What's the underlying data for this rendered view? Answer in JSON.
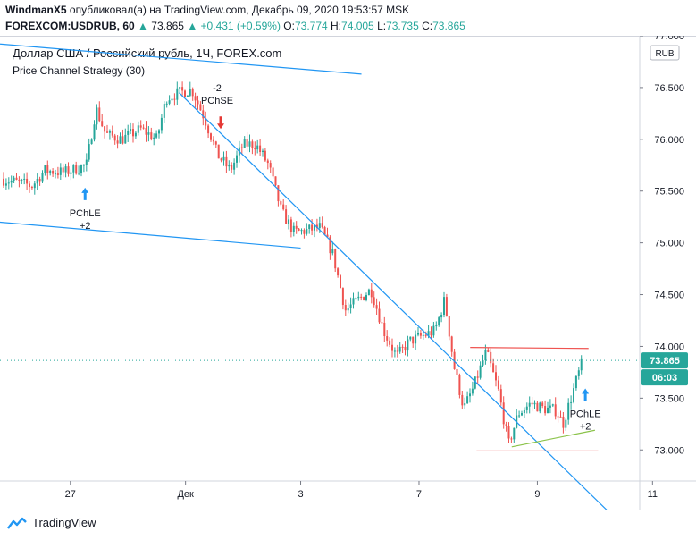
{
  "header": {
    "publisher": "WindmanX5",
    "published_text": "опубликовал(а) на TradingView.com, Декабрь 09, 2020 19:53:57 MSK",
    "symbol": "FOREXCOM:USDRUB, 60",
    "last": "73.865",
    "change": "+0.431 (+0.59%)",
    "o_label": "O:",
    "o": "73.774",
    "h_label": "H:",
    "h": "74.005",
    "l_label": "L:",
    "l": "73.735",
    "c_label": "C:",
    "c": "73.865"
  },
  "legend": {
    "title": "Доллар США / Российский рубль, 1Ч, FOREX.com",
    "strategy": "Price Channel Strategy (30)"
  },
  "footer": {
    "brand": "TradingView"
  },
  "colors": {
    "up": "#26a69a",
    "down": "#ef5350",
    "trend": "#2196f3",
    "support": "#e53935",
    "green_trend": "#8bc34a",
    "price_tag": "#26a69a"
  },
  "chart_data": {
    "type": "candlestick",
    "currency_label": "RUB",
    "last_price_label": "73.865",
    "countdown_label": "06:03",
    "ylim": [
      72.7,
      77.0
    ],
    "y_ticks": [
      "77.000",
      "76.500",
      "76.000",
      "75.500",
      "75.000",
      "74.500",
      "74.000",
      "73.500",
      "73.000"
    ],
    "x_ticks": [
      {
        "label": "27",
        "t": 0.11
      },
      {
        "label": "Дек",
        "t": 0.29
      },
      {
        "label": "3",
        "t": 0.47
      },
      {
        "label": "7",
        "t": 0.655
      },
      {
        "label": "9",
        "t": 0.84
      },
      {
        "label": "11",
        "t": 1.02
      }
    ],
    "close_path": [
      [
        0.0,
        75.62
      ],
      [
        0.03,
        75.58
      ],
      [
        0.05,
        75.55
      ],
      [
        0.07,
        75.7
      ],
      [
        0.1,
        75.68
      ],
      [
        0.12,
        75.72
      ],
      [
        0.135,
        75.75
      ],
      [
        0.15,
        76.3
      ],
      [
        0.165,
        76.05
      ],
      [
        0.19,
        76.0
      ],
      [
        0.22,
        76.1
      ],
      [
        0.245,
        76.0
      ],
      [
        0.26,
        76.4
      ],
      [
        0.28,
        76.45
      ],
      [
        0.3,
        76.48
      ],
      [
        0.32,
        76.2
      ],
      [
        0.34,
        75.85
      ],
      [
        0.36,
        75.7
      ],
      [
        0.38,
        75.95
      ],
      [
        0.4,
        75.95
      ],
      [
        0.42,
        75.75
      ],
      [
        0.44,
        75.3
      ],
      [
        0.46,
        75.1
      ],
      [
        0.48,
        75.12
      ],
      [
        0.5,
        75.15
      ],
      [
        0.52,
        74.9
      ],
      [
        0.54,
        74.35
      ],
      [
        0.56,
        74.45
      ],
      [
        0.58,
        74.55
      ],
      [
        0.6,
        74.15
      ],
      [
        0.62,
        73.9
      ],
      [
        0.64,
        74.05
      ],
      [
        0.66,
        74.1
      ],
      [
        0.68,
        74.15
      ],
      [
        0.695,
        74.45
      ],
      [
        0.71,
        73.8
      ],
      [
        0.725,
        73.4
      ],
      [
        0.74,
        73.6
      ],
      [
        0.76,
        73.95
      ],
      [
        0.78,
        73.55
      ],
      [
        0.795,
        73.05
      ],
      [
        0.81,
        73.35
      ],
      [
        0.83,
        73.45
      ],
      [
        0.85,
        73.4
      ],
      [
        0.87,
        73.38
      ],
      [
        0.88,
        73.25
      ],
      [
        0.9,
        73.65
      ],
      [
        0.91,
        73.85
      ]
    ],
    "trendlines": [
      {
        "name": "channel-top",
        "x1": 0.0,
        "y1": 76.92,
        "x2": 0.565,
        "y2": 76.63,
        "color": "#2196f3"
      },
      {
        "name": "channel-bottom",
        "x1": 0.0,
        "y1": 75.2,
        "x2": 0.47,
        "y2": 74.95,
        "color": "#2196f3"
      },
      {
        "name": "downtrend",
        "x1": 0.28,
        "y1": 76.45,
        "x2": 0.96,
        "y2": 72.35,
        "color": "#2196f3"
      },
      {
        "name": "resistance",
        "x1": 0.735,
        "y1": 73.99,
        "x2": 0.92,
        "y2": 73.98,
        "color": "#ef5350"
      },
      {
        "name": "support",
        "x1": 0.745,
        "y1": 72.99,
        "x2": 0.935,
        "y2": 72.99,
        "color": "#e53935"
      },
      {
        "name": "rising-support",
        "x1": 0.8,
        "y1": 73.03,
        "x2": 0.93,
        "y2": 73.19,
        "color": "#8bc34a"
      }
    ],
    "signals": [
      {
        "type": "long",
        "label": "PChLE",
        "qty": "+2",
        "t": 0.133,
        "price": 75.62
      },
      {
        "type": "short",
        "label": "PChSE",
        "qty": "-2",
        "t": 0.345,
        "price": 76.1
      },
      {
        "type": "long",
        "label": "PChLE",
        "qty": "+2",
        "t": 0.915,
        "price": 73.68
      }
    ]
  }
}
